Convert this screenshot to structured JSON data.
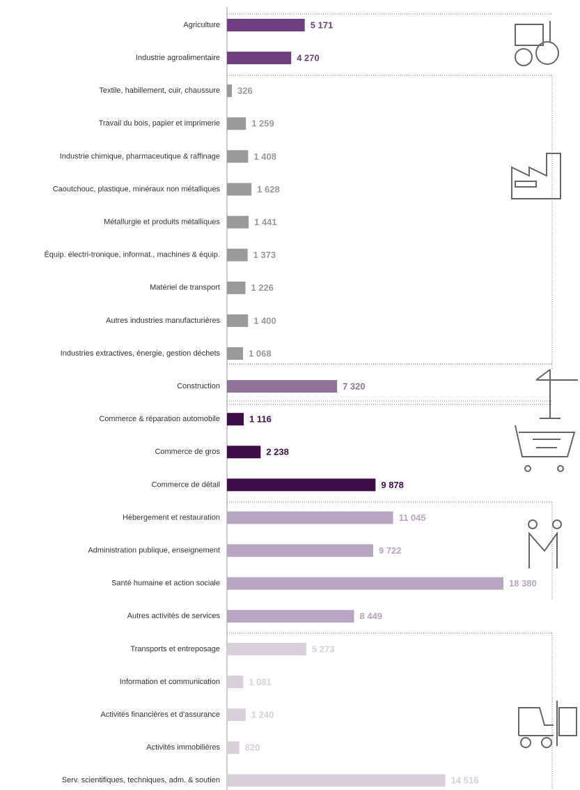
{
  "chart_data": {
    "type": "barh",
    "categories": [
      "Agriculture",
      "Industrie agroalimentaire",
      "Textile, habillement, cuir, chaussure",
      "Travail du bois, papier et imprimerie",
      "Industrie chimique, pharmaceutique & raffinage",
      "Caoutchouc, plastique, minéraux non métalliques",
      "Métallurgie et produits métalliques",
      "Équip. électri-tronique, informat., machines & équip.",
      "Matériel de transport",
      "Autres industries manufacturières",
      "Industries extractives, énergie, gestion déchets",
      "Construction",
      "Commerce & réparation automobile",
      "Commerce de gros",
      "Commerce de détail",
      "Hébergement et restauration",
      "Administration publique, enseignement",
      "Santé humaine et action sociale",
      "Autres activités de services",
      "Transports et entreposage",
      "Information et communication",
      "Activités financières et d'assurance",
      "Activités immobilières",
      "Serv. scientifiques, techniques, adm. & soutien"
    ],
    "values": [
      5171,
      4270,
      326,
      1259,
      1408,
      1628,
      1441,
      1373,
      1226,
      1400,
      1068,
      7320,
      1116,
      2238,
      9878,
      11045,
      9722,
      18380,
      8449,
      5273,
      1081,
      1240,
      820,
      14516
    ],
    "value_labels": [
      "5 171",
      "4 270",
      "326",
      "1 259",
      "1 408",
      "1 628",
      "1 441",
      "1 373",
      "1 226",
      "1 400",
      "1 068",
      "7 320",
      "1 116",
      "2 238",
      "9 878",
      "11 045",
      "9 722",
      "18 380",
      "8 449",
      "5 273",
      "1 081",
      "1 240",
      "820",
      "14 516"
    ],
    "colors": [
      "#6e3f7e",
      "#6e3f7e",
      "#9a9a9a",
      "#9a9a9a",
      "#9a9a9a",
      "#9a9a9a",
      "#9a9a9a",
      "#9a9a9a",
      "#9a9a9a",
      "#9a9a9a",
      "#9a9a9a",
      "#8f7399",
      "#3f0d48",
      "#3f0d48",
      "#3f0d48",
      "#b8a5c1",
      "#b8a5c1",
      "#b8a5c1",
      "#b8a5c1",
      "#d9cfdb",
      "#d9cfdb",
      "#d9cfdb",
      "#d9cfdb",
      "#d9cfdb"
    ]
  }
}
